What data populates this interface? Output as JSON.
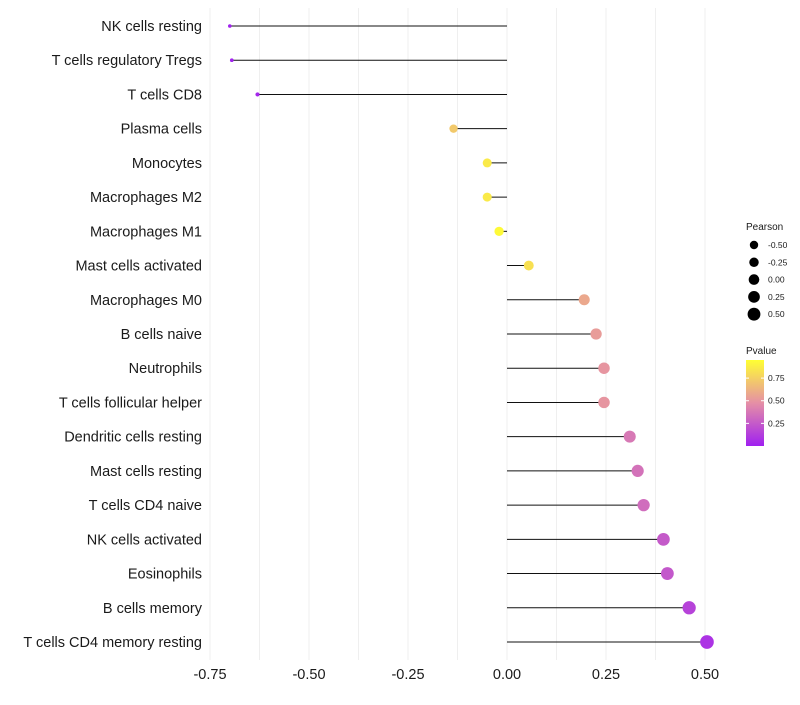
{
  "chart_data": {
    "type": "lollipop",
    "categories": [
      "NK cells resting",
      "T cells regulatory  Tregs",
      "T cells CD8",
      "Plasma cells",
      "Monocytes",
      "Macrophages M2",
      "Macrophages M1",
      "Mast cells activated",
      "Macrophages M0",
      "B cells naive",
      "Neutrophils",
      "T cells follicular helper",
      "Dendritic cells resting",
      "Mast cells resting",
      "T cells CD4 naive",
      "NK cells activated",
      "Eosinophils",
      "B cells memory",
      "T cells CD4 memory resting"
    ],
    "pearson": [
      -0.7,
      -0.695,
      -0.63,
      -0.135,
      -0.05,
      -0.05,
      -0.02,
      0.055,
      0.195,
      0.225,
      0.245,
      0.245,
      0.31,
      0.33,
      0.345,
      0.395,
      0.405,
      0.46,
      0.505
    ],
    "pvalue": [
      0.01,
      0.01,
      0.03,
      0.72,
      0.86,
      0.86,
      0.93,
      0.82,
      0.58,
      0.53,
      0.5,
      0.5,
      0.38,
      0.35,
      0.33,
      0.25,
      0.24,
      0.15,
      0.08
    ],
    "xlim": [
      -0.75,
      0.5
    ],
    "x_ticks": [
      -0.75,
      -0.5,
      -0.25,
      0.0,
      0.25,
      0.5
    ],
    "x_tick_labels": [
      "-0.75",
      "-0.50",
      "-0.25",
      "0.00",
      "0.25",
      "0.50"
    ],
    "xlabel": "",
    "ylabel": "",
    "grid": true,
    "legend": {
      "size_title": "Pearson",
      "size_values": [
        -0.5,
        -0.25,
        0.0,
        0.25,
        0.5
      ],
      "size_labels": [
        "-0.50",
        "-0.25",
        "0.00",
        "0.25",
        "0.50"
      ],
      "color_title": "Pvalue",
      "color_labels": [
        "0.75",
        "0.50",
        "0.25"
      ],
      "color_values": [
        0.75,
        0.5,
        0.25
      ],
      "color_range": [
        0.0,
        0.95
      ],
      "color_low": "#a020f0",
      "color_high": "#ffff33",
      "placement": "right"
    }
  }
}
